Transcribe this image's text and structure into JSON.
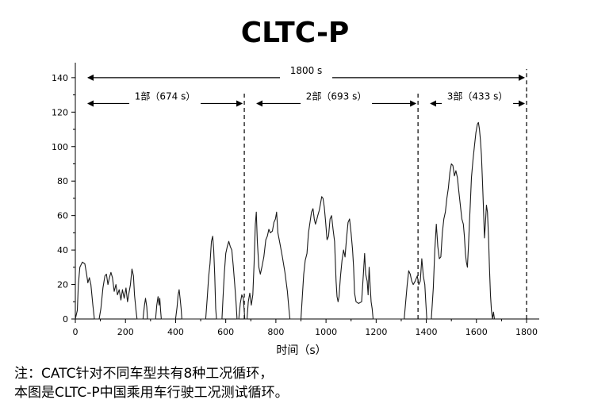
{
  "chart_data": {
    "type": "line",
    "title": "CLTC-P",
    "xlabel": "时间（s）",
    "ylabel": "",
    "xlim": [
      0,
      1800
    ],
    "ylim": [
      0,
      145
    ],
    "xticks": [
      0,
      200,
      400,
      600,
      800,
      1000,
      1200,
      1400,
      1600,
      1800
    ],
    "yticks": [
      0,
      20,
      40,
      60,
      80,
      100,
      120,
      140
    ],
    "grid": false,
    "series": [
      {
        "points": [
          [
            0,
            0
          ],
          [
            8,
            5
          ],
          [
            12,
            20
          ],
          [
            18,
            30
          ],
          [
            28,
            33
          ],
          [
            38,
            32
          ],
          [
            45,
            26
          ],
          [
            50,
            21
          ],
          [
            56,
            24
          ],
          [
            62,
            20
          ],
          [
            70,
            8
          ],
          [
            76,
            0
          ],
          [
            95,
            0
          ],
          [
            102,
            6
          ],
          [
            110,
            18
          ],
          [
            118,
            25
          ],
          [
            124,
            26
          ],
          [
            130,
            20
          ],
          [
            136,
            24
          ],
          [
            142,
            27
          ],
          [
            148,
            24
          ],
          [
            155,
            16
          ],
          [
            162,
            20
          ],
          [
            168,
            14
          ],
          [
            175,
            17
          ],
          [
            182,
            11
          ],
          [
            188,
            17
          ],
          [
            195,
            12
          ],
          [
            202,
            18
          ],
          [
            208,
            10
          ],
          [
            214,
            15
          ],
          [
            220,
            20
          ],
          [
            226,
            29
          ],
          [
            232,
            25
          ],
          [
            236,
            14
          ],
          [
            242,
            5
          ],
          [
            246,
            0
          ],
          [
            270,
            0
          ],
          [
            276,
            8
          ],
          [
            280,
            12
          ],
          [
            285,
            7
          ],
          [
            288,
            0
          ],
          [
            320,
            0
          ],
          [
            325,
            8
          ],
          [
            330,
            13
          ],
          [
            334,
            8
          ],
          [
            337,
            12
          ],
          [
            340,
            5
          ],
          [
            343,
            0
          ],
          [
            400,
            0
          ],
          [
            406,
            7
          ],
          [
            410,
            14
          ],
          [
            414,
            17
          ],
          [
            418,
            12
          ],
          [
            422,
            6
          ],
          [
            425,
            0
          ],
          [
            520,
            0
          ],
          [
            526,
            12
          ],
          [
            532,
            25
          ],
          [
            537,
            32
          ],
          [
            543,
            45
          ],
          [
            548,
            48
          ],
          [
            552,
            40
          ],
          [
            556,
            25
          ],
          [
            560,
            6
          ],
          [
            563,
            0
          ],
          [
            585,
            0
          ],
          [
            589,
            12
          ],
          [
            594,
            26
          ],
          [
            600,
            38
          ],
          [
            606,
            42
          ],
          [
            612,
            45
          ],
          [
            618,
            42
          ],
          [
            624,
            40
          ],
          [
            630,
            31
          ],
          [
            636,
            20
          ],
          [
            641,
            10
          ],
          [
            645,
            0
          ],
          [
            652,
            0
          ],
          [
            658,
            9
          ],
          [
            664,
            14
          ],
          [
            670,
            12
          ],
          [
            676,
            0
          ],
          [
            685,
            0
          ],
          [
            690,
            10
          ],
          [
            696,
            15
          ],
          [
            702,
            8
          ],
          [
            708,
            14
          ],
          [
            713,
            32
          ],
          [
            718,
            55
          ],
          [
            722,
            62
          ],
          [
            726,
            45
          ],
          [
            732,
            30
          ],
          [
            738,
            26
          ],
          [
            744,
            30
          ],
          [
            752,
            36
          ],
          [
            760,
            46
          ],
          [
            766,
            48
          ],
          [
            772,
            52
          ],
          [
            778,
            50
          ],
          [
            786,
            51
          ],
          [
            792,
            56
          ],
          [
            798,
            58
          ],
          [
            803,
            62
          ],
          [
            808,
            50
          ],
          [
            816,
            44
          ],
          [
            826,
            36
          ],
          [
            836,
            27
          ],
          [
            846,
            16
          ],
          [
            852,
            6
          ],
          [
            856,
            0
          ],
          [
            900,
            0
          ],
          [
            905,
            12
          ],
          [
            911,
            26
          ],
          [
            917,
            34
          ],
          [
            924,
            38
          ],
          [
            930,
            50
          ],
          [
            936,
            56
          ],
          [
            942,
            62
          ],
          [
            948,
            64
          ],
          [
            953,
            58
          ],
          [
            958,
            55
          ],
          [
            962,
            57
          ],
          [
            967,
            60
          ],
          [
            973,
            63
          ],
          [
            978,
            67
          ],
          [
            983,
            71
          ],
          [
            988,
            70
          ],
          [
            993,
            65
          ],
          [
            998,
            57
          ],
          [
            1004,
            46
          ],
          [
            1010,
            48
          ],
          [
            1016,
            58
          ],
          [
            1022,
            60
          ],
          [
            1028,
            52
          ],
          [
            1034,
            45
          ],
          [
            1040,
            22
          ],
          [
            1044,
            13
          ],
          [
            1048,
            10
          ],
          [
            1052,
            13
          ],
          [
            1058,
            25
          ],
          [
            1064,
            34
          ],
          [
            1070,
            40
          ],
          [
            1076,
            36
          ],
          [
            1082,
            47
          ],
          [
            1088,
            56
          ],
          [
            1094,
            58
          ],
          [
            1100,
            50
          ],
          [
            1106,
            40
          ],
          [
            1110,
            30
          ],
          [
            1114,
            15
          ],
          [
            1120,
            10
          ],
          [
            1130,
            9
          ],
          [
            1142,
            10
          ],
          [
            1150,
            28
          ],
          [
            1154,
            38
          ],
          [
            1158,
            26
          ],
          [
            1164,
            22
          ],
          [
            1168,
            14
          ],
          [
            1172,
            30
          ],
          [
            1176,
            20
          ],
          [
            1180,
            10
          ],
          [
            1184,
            6
          ],
          [
            1188,
            0
          ],
          [
            1312,
            0
          ],
          [
            1318,
            10
          ],
          [
            1324,
            20
          ],
          [
            1330,
            28
          ],
          [
            1336,
            26
          ],
          [
            1342,
            22
          ],
          [
            1348,
            20
          ],
          [
            1356,
            22
          ],
          [
            1364,
            25
          ],
          [
            1370,
            20
          ],
          [
            1376,
            22
          ],
          [
            1382,
            35
          ],
          [
            1388,
            25
          ],
          [
            1394,
            20
          ],
          [
            1398,
            10
          ],
          [
            1402,
            0
          ],
          [
            1420,
            0
          ],
          [
            1428,
            18
          ],
          [
            1434,
            40
          ],
          [
            1440,
            55
          ],
          [
            1446,
            42
          ],
          [
            1452,
            35
          ],
          [
            1458,
            36
          ],
          [
            1464,
            50
          ],
          [
            1470,
            58
          ],
          [
            1476,
            62
          ],
          [
            1482,
            70
          ],
          [
            1488,
            76
          ],
          [
            1494,
            85
          ],
          [
            1500,
            90
          ],
          [
            1506,
            89
          ],
          [
            1512,
            83
          ],
          [
            1518,
            86
          ],
          [
            1524,
            82
          ],
          [
            1530,
            74
          ],
          [
            1536,
            66
          ],
          [
            1542,
            58
          ],
          [
            1548,
            55
          ],
          [
            1552,
            48
          ],
          [
            1556,
            38
          ],
          [
            1560,
            33
          ],
          [
            1564,
            30
          ],
          [
            1568,
            42
          ],
          [
            1572,
            55
          ],
          [
            1576,
            68
          ],
          [
            1580,
            82
          ],
          [
            1586,
            92
          ],
          [
            1592,
            100
          ],
          [
            1598,
            108
          ],
          [
            1604,
            113
          ],
          [
            1608,
            114
          ],
          [
            1612,
            110
          ],
          [
            1616,
            104
          ],
          [
            1620,
            95
          ],
          [
            1624,
            80
          ],
          [
            1628,
            65
          ],
          [
            1632,
            47
          ],
          [
            1636,
            56
          ],
          [
            1640,
            66
          ],
          [
            1644,
            62
          ],
          [
            1648,
            48
          ],
          [
            1652,
            30
          ],
          [
            1656,
            14
          ],
          [
            1660,
            5
          ],
          [
            1664,
            0
          ],
          [
            1668,
            4
          ],
          [
            1672,
            0
          ]
        ]
      }
    ],
    "annotations": [
      {
        "label": "1800  s",
        "x_start": 0,
        "x_end": 1800,
        "y": 140
      },
      {
        "label": "1部（674  s）",
        "x_start": 0,
        "x_end": 674,
        "y": 125
      },
      {
        "label": "2部（693  s）",
        "x_start": 674,
        "x_end": 1367,
        "y": 125
      },
      {
        "label": "3部（433  s）",
        "x_start": 1367,
        "x_end": 1800,
        "y": 125
      }
    ],
    "divider_lines_x": [
      674,
      1367,
      1800
    ]
  },
  "notes": {
    "line1": "注：CATC针对不同车型共有8种工况循环，",
    "line2": "本图是CLTC-P中国乘用车行驶工况测试循环。"
  },
  "colors": {
    "line": "#1a1a1a",
    "axis": "#000000"
  }
}
